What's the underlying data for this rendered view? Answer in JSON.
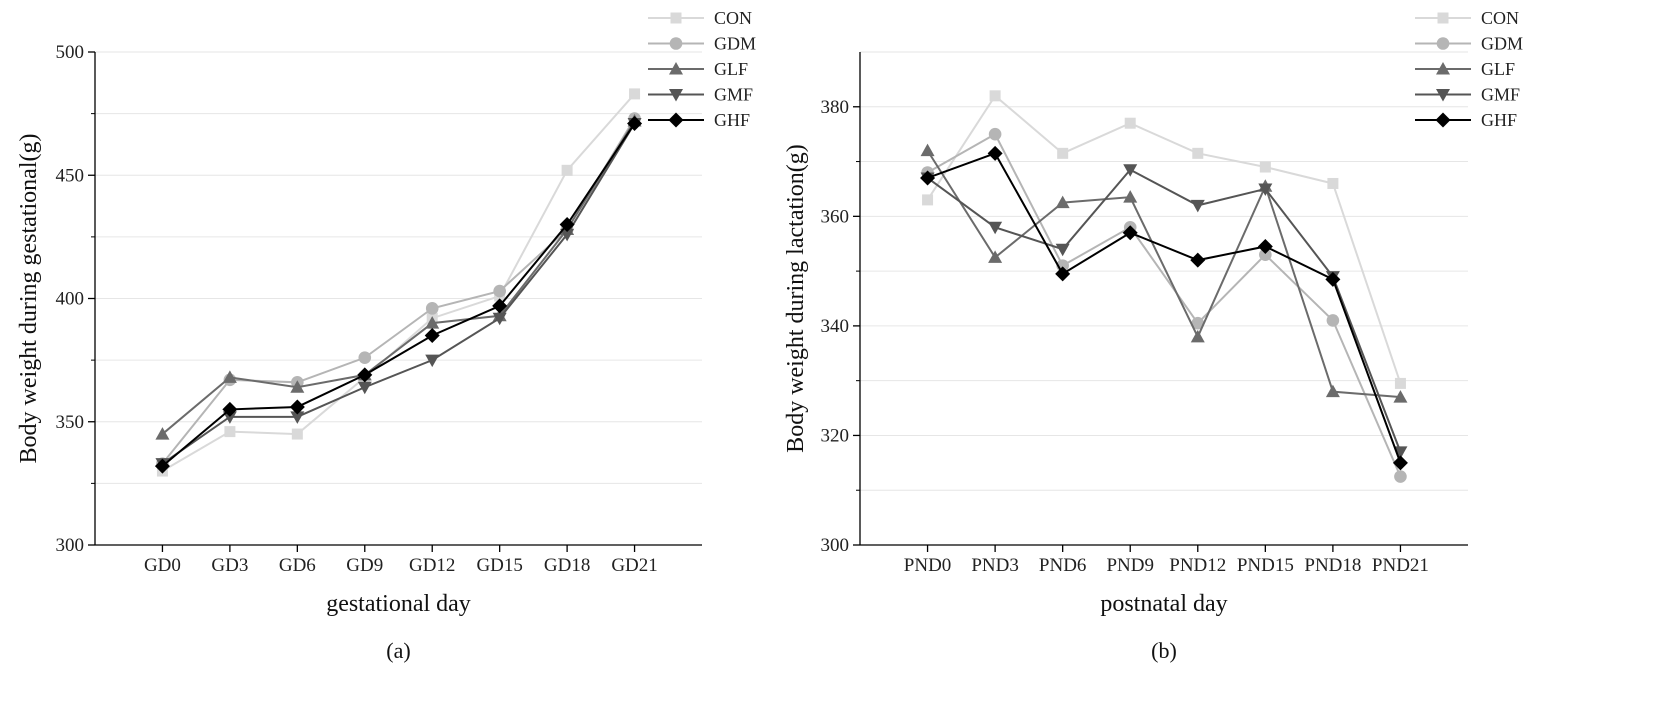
{
  "chart_data": [
    {
      "type": "line",
      "categories": [
        "GD0",
        "GD3",
        "GD6",
        "GD9",
        "GD12",
        "GD15",
        "GD18",
        "GD21"
      ],
      "ylabel": "Body weight during gestational(g)",
      "xlabel": "gestational day",
      "panel_label": "(a)",
      "ylim": [
        300,
        500
      ],
      "yticks": [
        300,
        350,
        400,
        450,
        500
      ],
      "grid": true,
      "legend_position": "top-right",
      "series": [
        {
          "name": "CON",
          "color": "#d9d9d9",
          "marker": "square",
          "values": [
            330,
            346,
            345,
            368,
            392,
            401,
            452,
            483
          ]
        },
        {
          "name": "GDM",
          "color": "#b5b5b5",
          "marker": "circle",
          "values": [
            333,
            367,
            366,
            376,
            396,
            403,
            428,
            473
          ]
        },
        {
          "name": "GLF",
          "color": "#6b6b6b",
          "marker": "triangle-up",
          "values": [
            345,
            368,
            364,
            369,
            390,
            393,
            428,
            472
          ]
        },
        {
          "name": "GMF",
          "color": "#555555",
          "marker": "triangle-down",
          "values": [
            333,
            352,
            352,
            364,
            375,
            392,
            426,
            471
          ]
        },
        {
          "name": "GHF",
          "color": "#000000",
          "marker": "diamond",
          "values": [
            332,
            355,
            356,
            369,
            385,
            397,
            430,
            471
          ]
        }
      ]
    },
    {
      "type": "line",
      "categories": [
        "PND0",
        "PND3",
        "PND6",
        "PND9",
        "PND12",
        "PND15",
        "PND18",
        "PND21"
      ],
      "ylabel": "Body weight during lactation(g)",
      "xlabel": "postnatal day",
      "panel_label": "(b)",
      "ylim": [
        300,
        390
      ],
      "yticks": [
        300,
        320,
        340,
        360,
        380
      ],
      "grid": true,
      "legend_position": "top-right",
      "series": [
        {
          "name": "CON",
          "color": "#d9d9d9",
          "marker": "square",
          "values": [
            363,
            382,
            371.5,
            377,
            371.5,
            369,
            366,
            329.5
          ]
        },
        {
          "name": "GDM",
          "color": "#b5b5b5",
          "marker": "circle",
          "values": [
            368,
            375,
            351,
            358,
            340.5,
            353,
            341,
            312.5
          ]
        },
        {
          "name": "GLF",
          "color": "#6b6b6b",
          "marker": "triangle-up",
          "values": [
            372,
            352.5,
            362.5,
            363.5,
            338,
            365.5,
            328,
            327
          ]
        },
        {
          "name": "GMF",
          "color": "#555555",
          "marker": "triangle-down",
          "values": [
            367,
            358,
            354,
            368.5,
            362,
            365,
            349,
            317
          ]
        },
        {
          "name": "GHF",
          "color": "#000000",
          "marker": "diamond",
          "values": [
            367,
            371.5,
            349.5,
            357,
            352,
            354.5,
            348.5,
            315
          ]
        }
      ]
    }
  ]
}
